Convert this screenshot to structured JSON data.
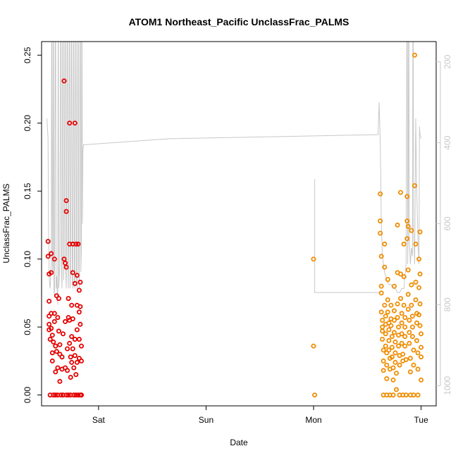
{
  "chart_data": {
    "type": "scatter",
    "title": "ATOM1 Northeast_Pacific UnclassFrac_PALMS",
    "xlabel": "Date",
    "ylabel": "UnclassFrac_PALMS",
    "x_ticks": [
      {
        "label": "Sat",
        "day": 1
      },
      {
        "label": "Sun",
        "day": 2
      },
      {
        "label": "Mon",
        "day": 3
      },
      {
        "label": "Tue",
        "day": 4
      }
    ],
    "xlim": [
      0.47,
      4.14
    ],
    "ylim": [
      -0.008,
      0.26
    ],
    "y_ticks": [
      0.0,
      0.05,
      0.1,
      0.15,
      0.2,
      0.25
    ],
    "y_tick_labels": [
      "0.00",
      "0.05",
      "0.10",
      "0.15",
      "0.20",
      "0.25"
    ],
    "right_axis": {
      "label_color": "#c8c8c8",
      "ticks": [
        200,
        400,
        600,
        800,
        1000
      ],
      "tick_labels": [
        "200",
        "400",
        "600",
        "800",
        "1000"
      ],
      "range_top_to_bottom": [
        150,
        1050
      ],
      "reversed": true
    },
    "colors": {
      "series_1": "#e60000",
      "series_2": "#f08c00",
      "line": "#c8c8c8"
    },
    "series": [
      {
        "color": "#e60000",
        "points": [
          [
            0.53,
            0.113
          ],
          [
            0.53,
            0.102
          ],
          [
            0.54,
            0.089
          ],
          [
            0.54,
            0.069
          ],
          [
            0.54,
            0.058
          ],
          [
            0.54,
            0.052
          ],
          [
            0.54,
            0.048
          ],
          [
            0.55,
            0.041
          ],
          [
            0.55,
            0.0
          ],
          [
            0.56,
            0.104
          ],
          [
            0.56,
            0.09
          ],
          [
            0.56,
            0.06
          ],
          [
            0.56,
            0.049
          ],
          [
            0.57,
            0.044
          ],
          [
            0.57,
            0.031
          ],
          [
            0.57,
            0.025
          ],
          [
            0.58,
            0.039
          ],
          [
            0.58,
            0.0
          ],
          [
            0.59,
            0.1
          ],
          [
            0.59,
            0.06
          ],
          [
            0.59,
            0.054
          ],
          [
            0.6,
            0.036
          ],
          [
            0.6,
            0.017
          ],
          [
            0.6,
            0.0
          ],
          [
            0.61,
            0.073
          ],
          [
            0.61,
            0.032
          ],
          [
            0.62,
            0.057
          ],
          [
            0.62,
            0.02
          ],
          [
            0.62,
            0.0
          ],
          [
            0.63,
            0.071
          ],
          [
            0.63,
            0.047
          ],
          [
            0.64,
            0.037
          ],
          [
            0.64,
            0.03
          ],
          [
            0.64,
            0.01
          ],
          [
            0.65,
            0.0
          ],
          [
            0.66,
            0.019
          ],
          [
            0.66,
            0.028
          ],
          [
            0.67,
            0.045
          ],
          [
            0.67,
            0.0
          ],
          [
            0.68,
            0.1
          ],
          [
            0.68,
            0.231
          ],
          [
            0.69,
            0.097
          ],
          [
            0.69,
            0.054
          ],
          [
            0.69,
            0.02
          ],
          [
            0.7,
            0.0
          ],
          [
            0.7,
            0.094
          ],
          [
            0.7,
            0.143
          ],
          [
            0.7,
            0.135
          ],
          [
            0.71,
            0.034
          ],
          [
            0.71,
            0.018
          ],
          [
            0.72,
            0.071
          ],
          [
            0.72,
            0.057
          ],
          [
            0.72,
            0.0
          ],
          [
            0.73,
            0.2
          ],
          [
            0.73,
            0.111
          ],
          [
            0.73,
            0.055
          ],
          [
            0.73,
            0.038
          ],
          [
            0.74,
            0.028
          ],
          [
            0.74,
            0.013
          ],
          [
            0.74,
            0.0
          ],
          [
            0.75,
            0.066
          ],
          [
            0.75,
            0.043
          ],
          [
            0.75,
            0.024
          ],
          [
            0.76,
            0.111
          ],
          [
            0.76,
            0.09
          ],
          [
            0.76,
            0.056
          ],
          [
            0.76,
            0.034
          ],
          [
            0.77,
            0.02
          ],
          [
            0.77,
            0.0
          ],
          [
            0.78,
            0.2
          ],
          [
            0.78,
            0.082
          ],
          [
            0.78,
            0.041
          ],
          [
            0.78,
            0.029
          ],
          [
            0.79,
            0.015
          ],
          [
            0.79,
            0.0
          ],
          [
            0.79,
            0.111
          ],
          [
            0.8,
            0.088
          ],
          [
            0.8,
            0.066
          ],
          [
            0.8,
            0.048
          ],
          [
            0.8,
            0.024
          ],
          [
            0.81,
            0.0
          ],
          [
            0.81,
            0.111
          ],
          [
            0.82,
            0.077
          ],
          [
            0.82,
            0.061
          ],
          [
            0.82,
            0.041
          ],
          [
            0.82,
            0.027
          ],
          [
            0.83,
            0.0
          ],
          [
            0.83,
            0.083
          ],
          [
            0.83,
            0.065
          ],
          [
            0.83,
            0.052
          ],
          [
            0.84,
            0.036
          ],
          [
            0.84,
            0.025
          ],
          [
            0.84,
            0.0
          ]
        ]
      },
      {
        "color": "#f08c00",
        "points": [
          [
            3.0,
            0.1
          ],
          [
            3.0,
            0.036
          ],
          [
            3.01,
            0.0
          ],
          [
            3.62,
            0.148
          ],
          [
            3.62,
            0.128
          ],
          [
            3.62,
            0.119
          ],
          [
            3.63,
            0.102
          ],
          [
            3.63,
            0.08
          ],
          [
            3.63,
            0.075
          ],
          [
            3.63,
            0.061
          ],
          [
            3.64,
            0.055
          ],
          [
            3.64,
            0.05
          ],
          [
            3.64,
            0.047
          ],
          [
            3.64,
            0.041
          ],
          [
            3.65,
            0.033
          ],
          [
            3.65,
            0.025
          ],
          [
            3.65,
            0.018
          ],
          [
            3.65,
            0.0
          ],
          [
            3.66,
            0.111
          ],
          [
            3.66,
            0.094
          ],
          [
            3.66,
            0.066
          ],
          [
            3.67,
            0.058
          ],
          [
            3.67,
            0.052
          ],
          [
            3.67,
            0.045
          ],
          [
            3.67,
            0.036
          ],
          [
            3.68,
            0.031
          ],
          [
            3.68,
            0.022
          ],
          [
            3.68,
            0.012
          ],
          [
            3.68,
            0.0
          ],
          [
            3.69,
            0.085
          ],
          [
            3.69,
            0.07
          ],
          [
            3.69,
            0.061
          ],
          [
            3.7,
            0.053
          ],
          [
            3.7,
            0.048
          ],
          [
            3.7,
            0.04
          ],
          [
            3.7,
            0.033
          ],
          [
            3.71,
            0.027
          ],
          [
            3.71,
            0.019
          ],
          [
            3.71,
            0.0
          ],
          [
            3.72,
            0.066
          ],
          [
            3.72,
            0.056
          ],
          [
            3.72,
            0.051
          ],
          [
            3.73,
            0.043
          ],
          [
            3.73,
            0.035
          ],
          [
            3.73,
            0.028
          ],
          [
            3.74,
            0.02
          ],
          [
            3.74,
            0.011
          ],
          [
            3.74,
            0.0
          ],
          [
            3.75,
            0.08
          ],
          [
            3.75,
            0.062
          ],
          [
            3.75,
            0.055
          ],
          [
            3.75,
            0.046
          ],
          [
            3.76,
            0.039
          ],
          [
            3.76,
            0.031
          ],
          [
            3.76,
            0.024
          ],
          [
            3.77,
            0.016
          ],
          [
            3.77,
            0.004
          ],
          [
            3.78,
            0.125
          ],
          [
            3.78,
            0.09
          ],
          [
            3.78,
            0.067
          ],
          [
            3.78,
            0.057
          ],
          [
            3.79,
            0.05
          ],
          [
            3.79,
            0.044
          ],
          [
            3.79,
            0.036
          ],
          [
            3.8,
            0.029
          ],
          [
            3.8,
            0.022
          ],
          [
            3.8,
            0.0
          ],
          [
            3.81,
            0.149
          ],
          [
            3.81,
            0.089
          ],
          [
            3.81,
            0.071
          ],
          [
            3.82,
            0.06
          ],
          [
            3.82,
            0.053
          ],
          [
            3.82,
            0.045
          ],
          [
            3.82,
            0.038
          ],
          [
            3.83,
            0.03
          ],
          [
            3.83,
            0.025
          ],
          [
            3.83,
            0.0
          ],
          [
            3.84,
            0.111
          ],
          [
            3.84,
            0.087
          ],
          [
            3.84,
            0.066
          ],
          [
            3.85,
            0.057
          ],
          [
            3.85,
            0.05
          ],
          [
            3.85,
            0.043
          ],
          [
            3.85,
            0.036
          ],
          [
            3.86,
            0.026
          ],
          [
            3.86,
            0.0
          ],
          [
            3.87,
            0.146
          ],
          [
            3.87,
            0.128
          ],
          [
            3.87,
            0.115
          ],
          [
            3.88,
            0.124
          ],
          [
            3.88,
            0.092
          ],
          [
            3.88,
            0.074
          ],
          [
            3.88,
            0.063
          ],
          [
            3.89,
            0.055
          ],
          [
            3.89,
            0.046
          ],
          [
            3.89,
            0.038
          ],
          [
            3.9,
            0.027
          ],
          [
            3.9,
            0.017
          ],
          [
            3.9,
            0.0
          ],
          [
            3.91,
            0.121
          ],
          [
            3.91,
            0.081
          ],
          [
            3.91,
            0.066
          ],
          [
            3.92,
            0.058
          ],
          [
            3.92,
            0.05
          ],
          [
            3.92,
            0.043
          ],
          [
            3.93,
            0.033
          ],
          [
            3.93,
            0.022
          ],
          [
            3.93,
            0.0
          ],
          [
            3.94,
            0.25
          ],
          [
            3.94,
            0.154
          ],
          [
            3.95,
            0.111
          ],
          [
            3.95,
            0.083
          ],
          [
            3.95,
            0.07
          ],
          [
            3.96,
            0.06
          ],
          [
            3.96,
            0.053
          ],
          [
            3.96,
            0.04
          ],
          [
            3.97,
            0.031
          ],
          [
            3.97,
            0.019
          ],
          [
            3.97,
            0.0
          ],
          [
            3.98,
            0.1
          ],
          [
            3.98,
            0.079
          ],
          [
            3.98,
            0.059
          ],
          [
            3.99,
            0.12
          ],
          [
            3.99,
            0.089
          ],
          [
            3.99,
            0.067
          ],
          [
            3.99,
            0.051
          ],
          [
            4.0,
            0.045
          ],
          [
            4.0,
            0.035
          ],
          [
            4.0,
            0.028
          ],
          [
            4.0,
            0.011
          ]
        ]
      }
    ],
    "line_series": {
      "axis": "right",
      "points": [
        [
          0.52,
          340
        ],
        [
          0.53,
          390
        ],
        [
          0.535,
          620
        ],
        [
          0.54,
          720
        ],
        [
          0.545,
          750
        ],
        [
          0.55,
          760
        ],
        [
          0.56,
          700
        ],
        [
          0.565,
          -100
        ],
        [
          0.57,
          700
        ],
        [
          0.575,
          720
        ],
        [
          0.58,
          -100
        ],
        [
          0.585,
          760
        ],
        [
          0.59,
          780
        ],
        [
          0.6,
          -100
        ],
        [
          0.605,
          760
        ],
        [
          0.61,
          730
        ],
        [
          0.62,
          800
        ],
        [
          0.625,
          -100
        ],
        [
          0.63,
          760
        ],
        [
          0.64,
          700
        ],
        [
          0.65,
          -100
        ],
        [
          0.655,
          720
        ],
        [
          0.66,
          760
        ],
        [
          0.67,
          -100
        ],
        [
          0.675,
          740
        ],
        [
          0.68,
          690
        ],
        [
          0.69,
          -100
        ],
        [
          0.695,
          720
        ],
        [
          0.7,
          760
        ],
        [
          0.71,
          -100
        ],
        [
          0.715,
          710
        ],
        [
          0.72,
          760
        ],
        [
          0.73,
          -100
        ],
        [
          0.735,
          760
        ],
        [
          0.74,
          720
        ],
        [
          0.75,
          -100
        ],
        [
          0.755,
          740
        ],
        [
          0.76,
          760
        ],
        [
          0.77,
          -100
        ],
        [
          0.775,
          740
        ],
        [
          0.78,
          760
        ],
        [
          0.79,
          -100
        ],
        [
          0.795,
          740
        ],
        [
          0.8,
          760
        ],
        [
          0.81,
          -100
        ],
        [
          0.815,
          700
        ],
        [
          0.82,
          760
        ],
        [
          0.83,
          -100
        ],
        [
          0.835,
          720
        ],
        [
          0.84,
          660
        ],
        [
          0.845,
          -100
        ],
        [
          0.85,
          600
        ],
        [
          0.855,
          420
        ],
        [
          0.86,
          405
        ],
        [
          1.66,
          390
        ],
        [
          3.6,
          380
        ],
        [
          3.6,
          380
        ],
        [
          3.61,
          300
        ],
        [
          3.62,
          400
        ],
        [
          3.63,
          600
        ],
        [
          3.64,
          680
        ],
        [
          3.65,
          700
        ],
        [
          3.66,
          720
        ],
        [
          3.67,
          730
        ],
        [
          3.68,
          740
        ],
        [
          3.7,
          750
        ],
        [
          3.72,
          750
        ],
        [
          3.74,
          760
        ],
        [
          3.76,
          760
        ],
        [
          3.78,
          770
        ],
        [
          3.8,
          770
        ],
        [
          3.82,
          760
        ],
        [
          3.84,
          760
        ],
        [
          3.86,
          700
        ],
        [
          3.87,
          -100
        ],
        [
          3.875,
          700
        ],
        [
          3.88,
          600
        ],
        [
          3.885,
          -100
        ],
        [
          3.89,
          640
        ],
        [
          3.9,
          700
        ],
        [
          3.91,
          660
        ],
        [
          3.92,
          680
        ],
        [
          3.925,
          -100
        ],
        [
          3.93,
          620
        ],
        [
          3.94,
          700
        ],
        [
          3.95,
          340
        ],
        [
          3.96,
          520
        ],
        [
          3.97,
          640
        ],
        [
          3.98,
          700
        ],
        [
          3.985,
          360
        ],
        [
          3.99,
          380
        ],
        [
          4.0,
          390
        ]
      ],
      "extra_segments": [
        [
          [
            3.01,
            490
          ],
          [
            3.01,
            770
          ],
          [
            3.61,
            770
          ]
        ]
      ]
    }
  }
}
